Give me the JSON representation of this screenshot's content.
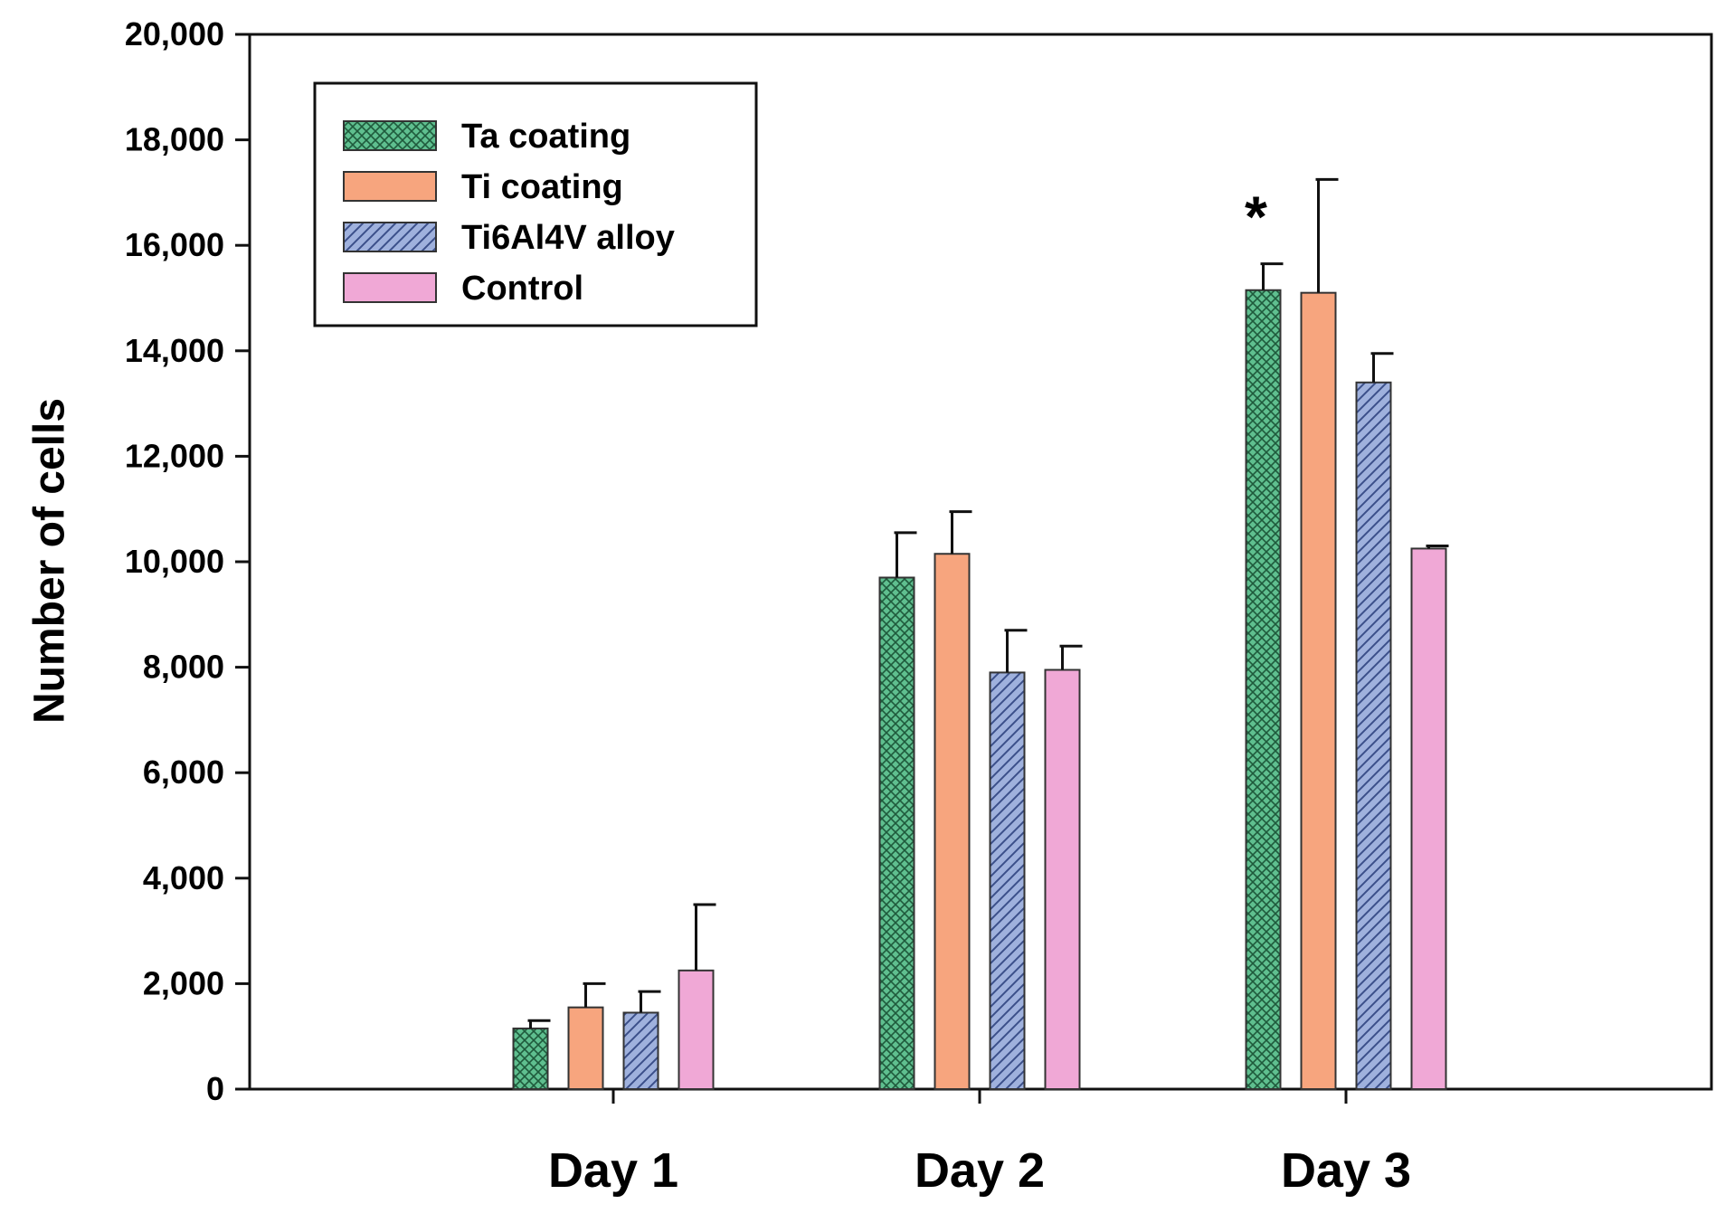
{
  "chart_data": {
    "type": "bar",
    "categories": [
      "Day 1",
      "Day 2",
      "Day 3"
    ],
    "series": [
      {
        "name": "Ta coating",
        "values": [
          1150,
          9700,
          15150
        ],
        "errors": [
          150,
          850,
          500
        ],
        "color": "#5fbf8f",
        "pattern": "crosshatch"
      },
      {
        "name": "Ti coating",
        "values": [
          1550,
          10150,
          15100
        ],
        "errors": [
          450,
          800,
          2150
        ],
        "color": "#f7a57e",
        "pattern": "solid"
      },
      {
        "name": "Ti6Al4V alloy",
        "values": [
          1450,
          7900,
          13400
        ],
        "errors": [
          400,
          800,
          550
        ],
        "color": "#8fa3d6",
        "pattern": "diagonal"
      },
      {
        "name": "Control",
        "values": [
          2250,
          7950,
          10250
        ],
        "errors": [
          1250,
          450,
          50
        ],
        "color": "#f0a8d6",
        "pattern": "solid"
      }
    ],
    "title": "",
    "xlabel": "",
    "ylabel": "Number of cells",
    "ylim": [
      0,
      20000
    ],
    "yticks": [
      "0",
      "2,000",
      "4,000",
      "6,000",
      "8,000",
      "10,000",
      "12,000",
      "14,000",
      "16,000",
      "18,000",
      "20,000"
    ],
    "annotations": [
      {
        "category": "Day 3",
        "series": "Ta coating",
        "text": "*"
      }
    ],
    "grid": false,
    "legend_position": "top-left"
  }
}
